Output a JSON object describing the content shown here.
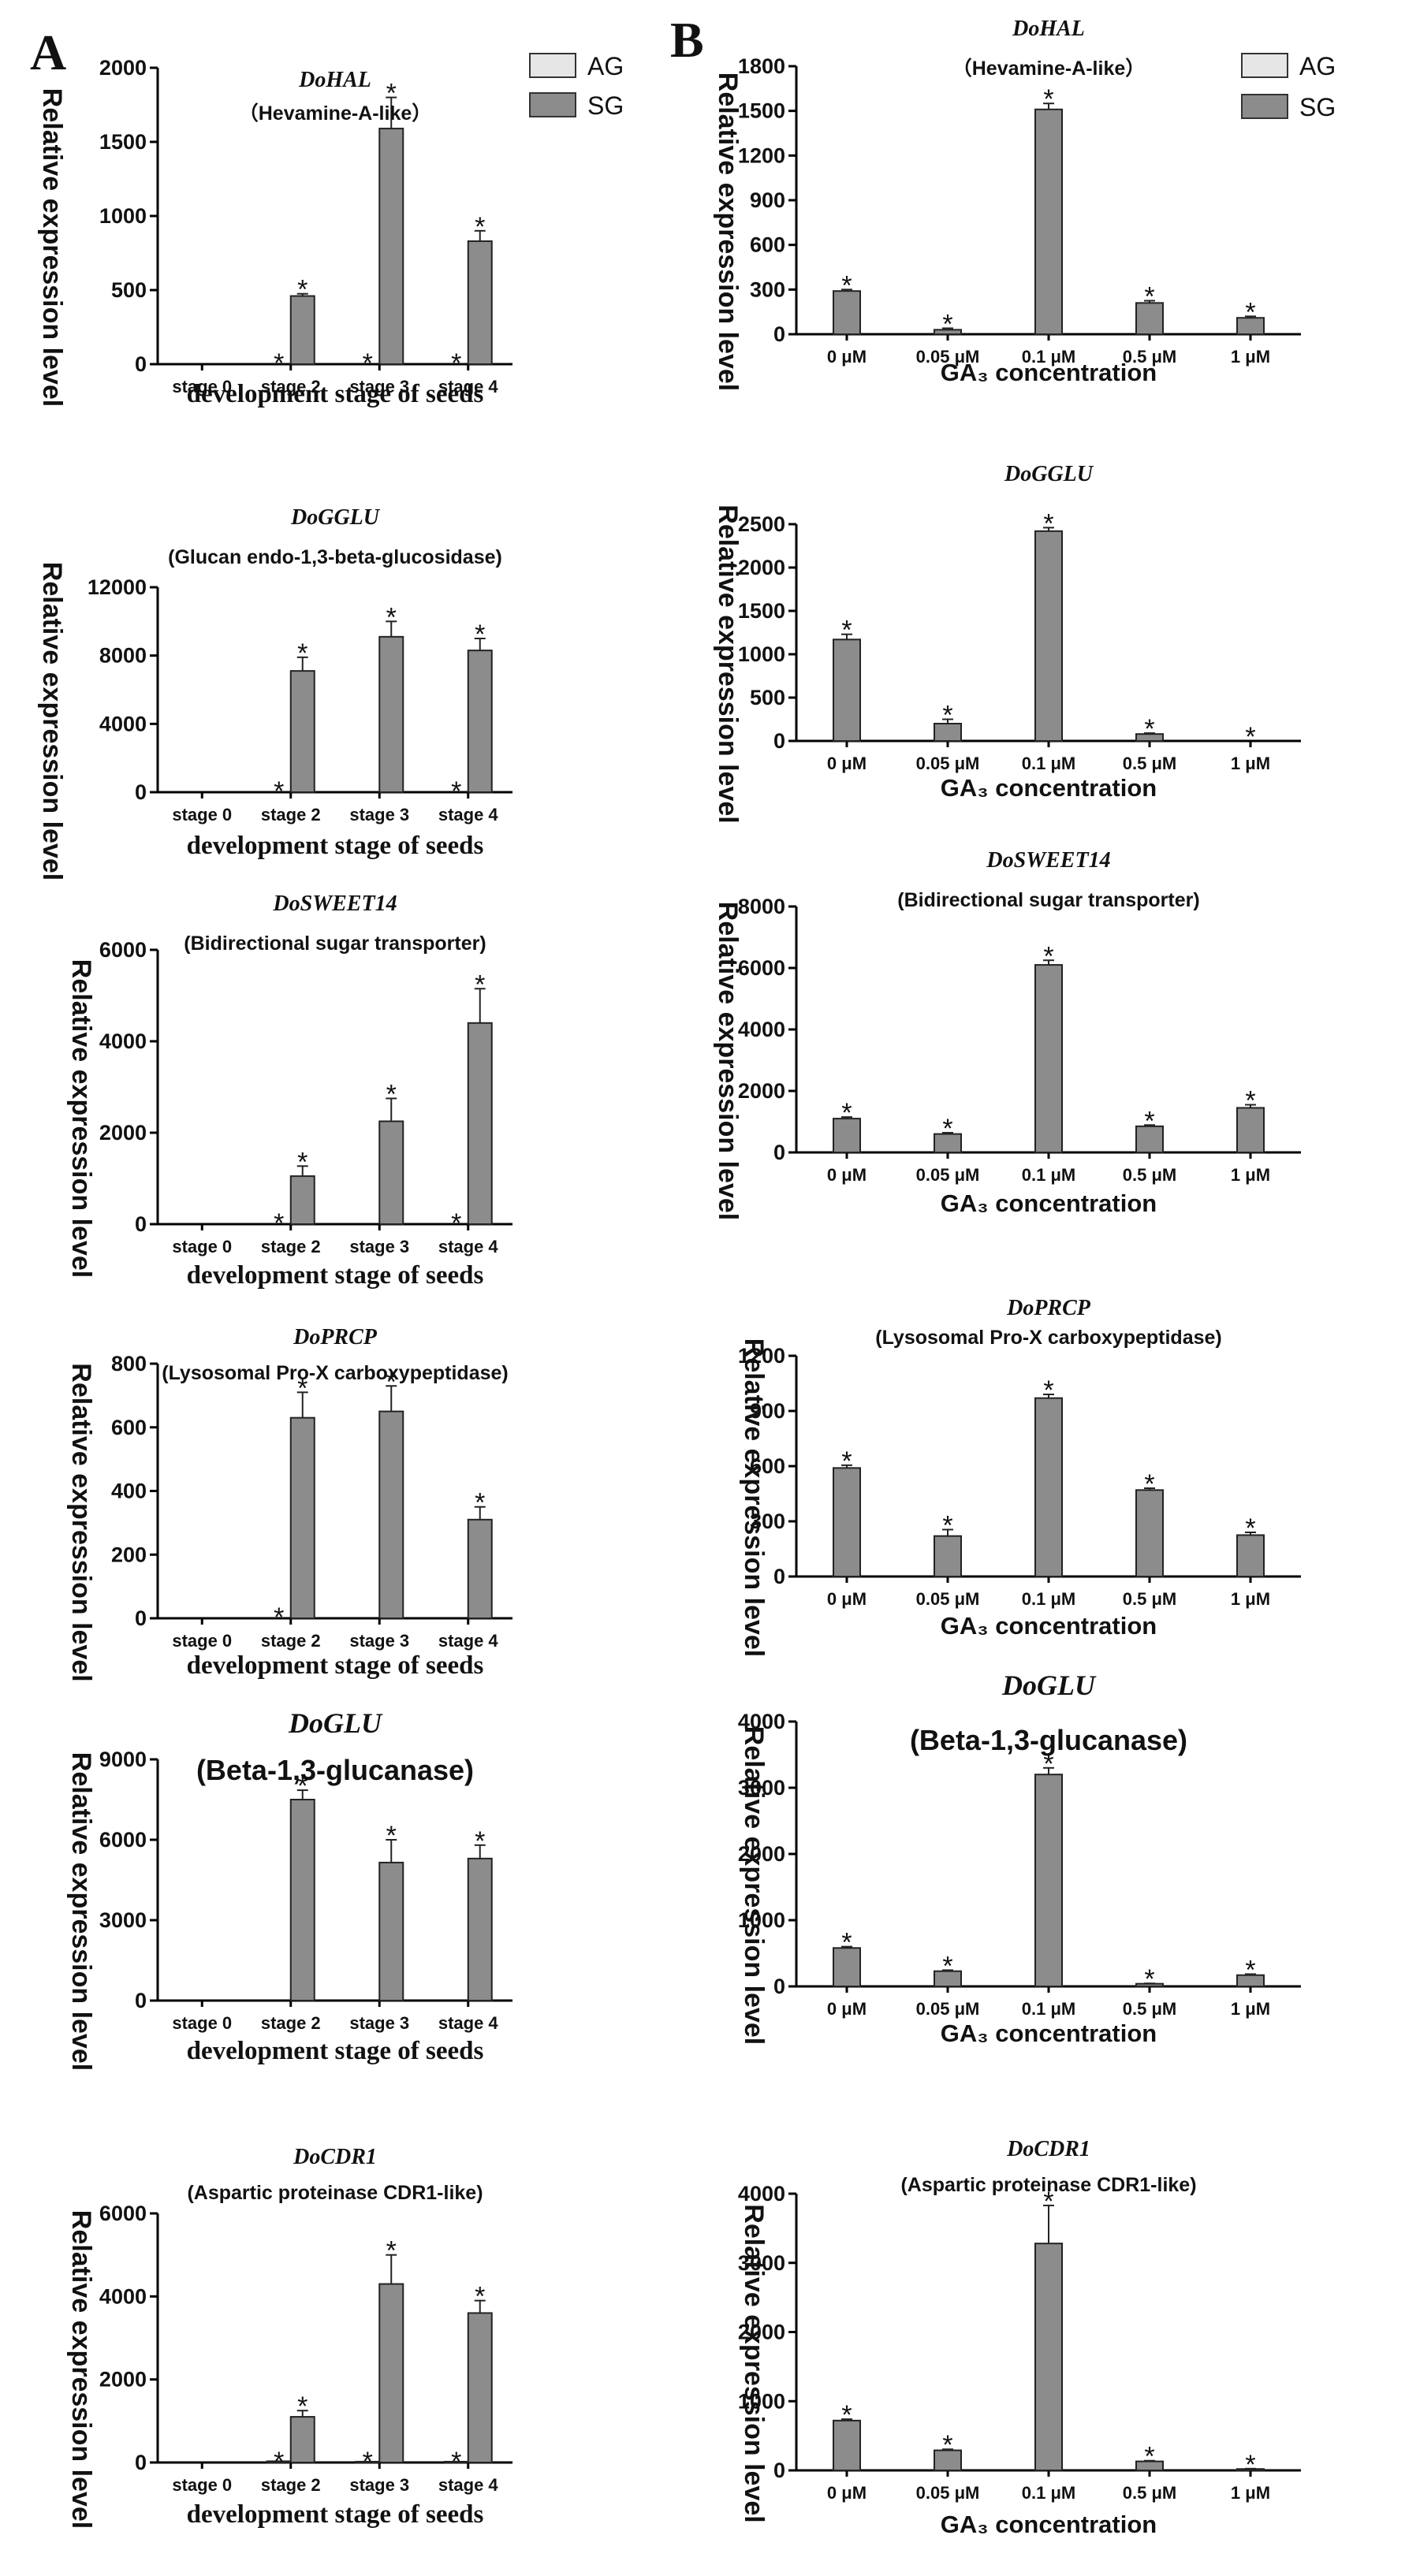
{
  "figure": {
    "panel_a_label": "A",
    "panel_b_label": "B",
    "legend": {
      "ag": "AG",
      "sg": "SG",
      "ag_color": "#e6e6e6",
      "sg_color": "#8c8c8c"
    }
  },
  "chart_data": [
    {
      "id": "a1",
      "type": "bar",
      "title": "DoHAL",
      "subtitle": "（Hevamine-A-like）",
      "xlabel": "development stage of seeds",
      "ylabel": "Relative expression level",
      "categories": [
        "stage 0",
        "stage 2",
        "stage 3",
        "stage 4"
      ],
      "ylim": [
        0,
        2000
      ],
      "yticks": [
        0,
        500,
        1000,
        1500,
        2000
      ],
      "tick_labels": [
        "0",
        "500",
        "1000",
        "1500",
        "2000"
      ],
      "series": [
        {
          "name": "AG",
          "values": [
            0,
            0,
            0,
            0
          ]
        },
        {
          "name": "SG",
          "values": [
            0,
            460,
            1590,
            830
          ],
          "errors": [
            0,
            15,
            210,
            70
          ]
        }
      ],
      "stars": [
        {
          "cat": 1,
          "series": 0,
          "text": "*"
        },
        {
          "cat": 1,
          "series": 1,
          "text": "*"
        },
        {
          "cat": 2,
          "series": 0,
          "text": "*"
        },
        {
          "cat": 2,
          "series": 1,
          "text": "*"
        },
        {
          "cat": 3,
          "series": 0,
          "text": "*"
        },
        {
          "cat": 3,
          "series": 1,
          "text": "*"
        }
      ]
    },
    {
      "id": "a2",
      "type": "bar",
      "title": "DoGGLU",
      "subtitle": "(Glucan endo-1,3-beta-glucosidase)",
      "xlabel": "development stage of seeds",
      "ylabel": "Relative expression level",
      "categories": [
        "stage 0",
        "stage 2",
        "stage 3",
        "stage 4"
      ],
      "ylim": [
        0,
        12000
      ],
      "yticks": [
        0,
        4000,
        8000,
        12000
      ],
      "tick_labels": [
        "0",
        "4000",
        "8000",
        "12000"
      ],
      "series": [
        {
          "name": "AG",
          "values": [
            0,
            0,
            0,
            0
          ]
        },
        {
          "name": "SG",
          "values": [
            0,
            7100,
            9100,
            8300
          ],
          "errors": [
            0,
            800,
            900,
            700
          ]
        }
      ],
      "stars": [
        {
          "cat": 1,
          "series": 0,
          "text": "*"
        },
        {
          "cat": 1,
          "series": 1,
          "text": "*"
        },
        {
          "cat": 2,
          "series": 1,
          "text": "*"
        },
        {
          "cat": 3,
          "series": 0,
          "text": "*"
        },
        {
          "cat": 3,
          "series": 1,
          "text": "*"
        }
      ]
    },
    {
      "id": "a3",
      "type": "bar",
      "title": "DoSWEET14",
      "subtitle": "(Bidirectional sugar transporter)",
      "xlabel": "development stage of seeds",
      "ylabel": "Relative expression level",
      "categories": [
        "stage 0",
        "stage 2",
        "stage 3",
        "stage 4"
      ],
      "ylim": [
        0,
        6000
      ],
      "yticks": [
        0,
        2000,
        4000,
        6000
      ],
      "tick_labels": [
        "0",
        "2000",
        "4000",
        "6000"
      ],
      "series": [
        {
          "name": "AG",
          "values": [
            0,
            0,
            0,
            0
          ]
        },
        {
          "name": "SG",
          "values": [
            0,
            1050,
            2250,
            4400
          ],
          "errors": [
            0,
            220,
            500,
            750
          ]
        }
      ],
      "stars": [
        {
          "cat": 1,
          "series": 0,
          "text": "*"
        },
        {
          "cat": 1,
          "series": 1,
          "text": "*"
        },
        {
          "cat": 2,
          "series": 1,
          "text": "*"
        },
        {
          "cat": 3,
          "series": 0,
          "text": "*"
        },
        {
          "cat": 3,
          "series": 1,
          "text": "*"
        }
      ]
    },
    {
      "id": "a4",
      "type": "bar",
      "title": "DoPRCP",
      "subtitle": "(Lysosomal Pro-X carboxypeptidase)",
      "xlabel": "development stage of seeds",
      "ylabel": "Relative expression level",
      "categories": [
        "stage 0",
        "stage 2",
        "stage 3",
        "stage 4"
      ],
      "ylim": [
        0,
        800
      ],
      "yticks": [
        0,
        200,
        400,
        600,
        800
      ],
      "tick_labels": [
        "0",
        "200",
        "400",
        "600",
        "800"
      ],
      "series": [
        {
          "name": "AG",
          "values": [
            0,
            0,
            0,
            0
          ]
        },
        {
          "name": "SG",
          "values": [
            0,
            630,
            650,
            310
          ],
          "errors": [
            0,
            80,
            80,
            40
          ]
        }
      ],
      "stars": [
        {
          "cat": 1,
          "series": 0,
          "text": "*"
        },
        {
          "cat": 1,
          "series": 1,
          "text": "*"
        },
        {
          "cat": 2,
          "series": 1,
          "text": "*"
        },
        {
          "cat": 3,
          "series": 1,
          "text": "*"
        }
      ]
    },
    {
      "id": "a5",
      "type": "bar",
      "title": "DoGLU",
      "subtitle": "(Beta-1,3-glucanase)",
      "big_title": true,
      "xlabel": "development stage of seeds",
      "ylabel": "Relative expression level",
      "categories": [
        "stage 0",
        "stage 2",
        "stage 3",
        "stage 4"
      ],
      "ylim": [
        0,
        9000
      ],
      "yticks": [
        0,
        3000,
        6000,
        9000
      ],
      "tick_labels": [
        "0",
        "3000",
        "6000",
        "9000"
      ],
      "series": [
        {
          "name": "AG",
          "values": [
            0,
            0,
            0,
            0
          ]
        },
        {
          "name": "SG",
          "values": [
            0,
            7500,
            5150,
            5300
          ],
          "errors": [
            0,
            350,
            850,
            500
          ]
        }
      ],
      "stars": [
        {
          "cat": 1,
          "series": 1,
          "text": "*"
        },
        {
          "cat": 2,
          "series": 1,
          "text": "*"
        },
        {
          "cat": 3,
          "series": 1,
          "text": "*"
        }
      ]
    },
    {
      "id": "a6",
      "type": "bar",
      "title": "DoCDR1",
      "subtitle": "(Aspartic proteinase CDR1-like)",
      "xlabel": "development stage of seeds",
      "ylabel": "Relative expression level",
      "categories": [
        "stage 0",
        "stage 2",
        "stage 3",
        "stage 4"
      ],
      "ylim": [
        0,
        6000
      ],
      "yticks": [
        0,
        2000,
        4000,
        6000
      ],
      "tick_labels": [
        "0",
        "2000",
        "4000",
        "6000"
      ],
      "series": [
        {
          "name": "AG",
          "values": [
            0,
            30,
            20,
            20
          ]
        },
        {
          "name": "SG",
          "values": [
            0,
            1100,
            4300,
            3600
          ],
          "errors": [
            0,
            150,
            700,
            300
          ]
        }
      ],
      "stars": [
        {
          "cat": 1,
          "series": 0,
          "text": "*"
        },
        {
          "cat": 1,
          "series": 1,
          "text": "*"
        },
        {
          "cat": 2,
          "series": 0,
          "text": "*"
        },
        {
          "cat": 2,
          "series": 1,
          "text": "*"
        },
        {
          "cat": 3,
          "series": 0,
          "text": "*"
        },
        {
          "cat": 3,
          "series": 1,
          "text": "*"
        }
      ]
    },
    {
      "id": "b1",
      "type": "bar",
      "title": "DoHAL",
      "subtitle": "（Hevamine-A-like）",
      "xlabel": "GA₃ concentration",
      "ylabel": "Relative expression level",
      "categories": [
        "0 μM",
        "0.05 μM",
        "0.1 μM",
        "0.5 μM",
        "1 μM"
      ],
      "ylim": [
        0,
        1800
      ],
      "yticks": [
        0,
        300,
        600,
        900,
        1200,
        1500,
        1800
      ],
      "tick_labels": [
        "0",
        "300",
        "600",
        "900",
        "1200",
        "1500",
        "1800"
      ],
      "series": [
        {
          "name": "SG",
          "values": [
            290,
            30,
            1510,
            210,
            110
          ],
          "errors": [
            10,
            10,
            40,
            15,
            10
          ]
        }
      ],
      "stars": [
        {
          "cat": 0,
          "series": 0,
          "text": "*"
        },
        {
          "cat": 1,
          "series": 0,
          "text": "*"
        },
        {
          "cat": 2,
          "series": 0,
          "text": "*"
        },
        {
          "cat": 3,
          "series": 0,
          "text": "*"
        },
        {
          "cat": 4,
          "series": 0,
          "text": "*"
        }
      ]
    },
    {
      "id": "b2",
      "type": "bar",
      "title": "DoGGLU",
      "subtitle": "",
      "xlabel": "GA₃ concentration",
      "ylabel": "Relative expression level",
      "categories": [
        "0 μM",
        "0.05 μM",
        "0.1 μM",
        "0.5 μM",
        "1 μM"
      ],
      "ylim": [
        0,
        2500
      ],
      "yticks": [
        0,
        500,
        1000,
        1500,
        2000,
        2500
      ],
      "tick_labels": [
        "0",
        "500",
        "1000",
        "1500",
        "2000",
        "2500"
      ],
      "series": [
        {
          "name": "SG",
          "values": [
            1170,
            200,
            2420,
            80,
            0
          ],
          "errors": [
            60,
            50,
            40,
            10,
            0
          ]
        }
      ],
      "stars": [
        {
          "cat": 0,
          "series": 0,
          "text": "*"
        },
        {
          "cat": 1,
          "series": 0,
          "text": "*"
        },
        {
          "cat": 2,
          "series": 0,
          "text": "*"
        },
        {
          "cat": 3,
          "series": 0,
          "text": "*"
        },
        {
          "cat": 4,
          "series": 0,
          "text": "*"
        }
      ]
    },
    {
      "id": "b3",
      "type": "bar",
      "title": "DoSWEET14",
      "subtitle": "(Bidirectional sugar transporter)",
      "xlabel": "GA₃ concentration",
      "ylabel": "Relative expression level",
      "categories": [
        "0 μM",
        "0.05 μM",
        "0.1 μM",
        "0.5 μM",
        "1 μM"
      ],
      "ylim": [
        0,
        8000
      ],
      "yticks": [
        0,
        2000,
        4000,
        6000,
        8000
      ],
      "tick_labels": [
        "0",
        "2000",
        "4000",
        "6000",
        "8000"
      ],
      "series": [
        {
          "name": "SG",
          "values": [
            1100,
            600,
            6100,
            850,
            1450
          ],
          "errors": [
            50,
            40,
            150,
            40,
            100
          ]
        }
      ],
      "stars": [
        {
          "cat": 0,
          "series": 0,
          "text": "*"
        },
        {
          "cat": 1,
          "series": 0,
          "text": "*"
        },
        {
          "cat": 2,
          "series": 0,
          "text": "*"
        },
        {
          "cat": 3,
          "series": 0,
          "text": "*"
        },
        {
          "cat": 4,
          "series": 0,
          "text": "*"
        }
      ]
    },
    {
      "id": "b4",
      "type": "bar",
      "title": "DoPRCP",
      "subtitle": "(Lysosomal Pro-X carboxypeptidase)",
      "xlabel": "GA₃ concentration",
      "ylabel": "Relative expression level",
      "categories": [
        "0 μM",
        "0.05 μM",
        "0.1 μM",
        "0.5 μM",
        "1 μM"
      ],
      "ylim": [
        0,
        1200
      ],
      "yticks": [
        0,
        300,
        600,
        900,
        1200
      ],
      "tick_labels": [
        "0",
        "300",
        "600",
        "900",
        "1200"
      ],
      "series": [
        {
          "name": "SG",
          "values": [
            590,
            220,
            970,
            470,
            225
          ],
          "errors": [
            15,
            35,
            20,
            10,
            15
          ]
        }
      ],
      "stars": [
        {
          "cat": 0,
          "series": 0,
          "text": "*"
        },
        {
          "cat": 1,
          "series": 0,
          "text": "*"
        },
        {
          "cat": 2,
          "series": 0,
          "text": "*"
        },
        {
          "cat": 3,
          "series": 0,
          "text": "*"
        },
        {
          "cat": 4,
          "series": 0,
          "text": "*"
        }
      ]
    },
    {
      "id": "b5",
      "type": "bar",
      "title": "DoGLU",
      "subtitle": "(Beta-1,3-glucanase)",
      "big_title": true,
      "xlabel": "GA₃ concentration",
      "ylabel": "Relative expression level",
      "categories": [
        "0 μM",
        "0.05 μM",
        "0.1 μM",
        "0.5 μM",
        "1 μM"
      ],
      "ylim": [
        0,
        4000
      ],
      "yticks": [
        0,
        1000,
        2000,
        3000,
        4000
      ],
      "tick_labels": [
        "0",
        "1000",
        "2000",
        "3000",
        "4000"
      ],
      "series": [
        {
          "name": "SG",
          "values": [
            580,
            230,
            3200,
            40,
            170
          ],
          "errors": [
            20,
            15,
            100,
            5,
            15
          ]
        }
      ],
      "stars": [
        {
          "cat": 0,
          "series": 0,
          "text": "*"
        },
        {
          "cat": 1,
          "series": 0,
          "text": "*"
        },
        {
          "cat": 2,
          "series": 0,
          "text": "*"
        },
        {
          "cat": 3,
          "series": 0,
          "text": "*"
        },
        {
          "cat": 4,
          "series": 0,
          "text": "*"
        }
      ]
    },
    {
      "id": "b6",
      "type": "bar",
      "title": "DoCDR1",
      "subtitle": "(Aspartic proteinase CDR1-like)",
      "xlabel": "GA₃ concentration",
      "ylabel": "Relative expression level",
      "categories": [
        "0 μM",
        "0.05 μM",
        "0.1 μM",
        "0.5 μM",
        "1 μM"
      ],
      "ylim": [
        0,
        4000
      ],
      "yticks": [
        0,
        1000,
        2000,
        3000,
        4000
      ],
      "tick_labels": [
        "0",
        "1000",
        "2000",
        "3000",
        "4000"
      ],
      "series": [
        {
          "name": "SG",
          "values": [
            720,
            290,
            3280,
            130,
            20
          ],
          "errors": [
            20,
            15,
            550,
            10,
            5
          ]
        }
      ],
      "stars": [
        {
          "cat": 0,
          "series": 0,
          "text": "*"
        },
        {
          "cat": 1,
          "series": 0,
          "text": "*"
        },
        {
          "cat": 2,
          "series": 0,
          "text": "*"
        },
        {
          "cat": 3,
          "series": 0,
          "text": "*"
        },
        {
          "cat": 4,
          "series": 0,
          "text": "*"
        }
      ]
    }
  ]
}
